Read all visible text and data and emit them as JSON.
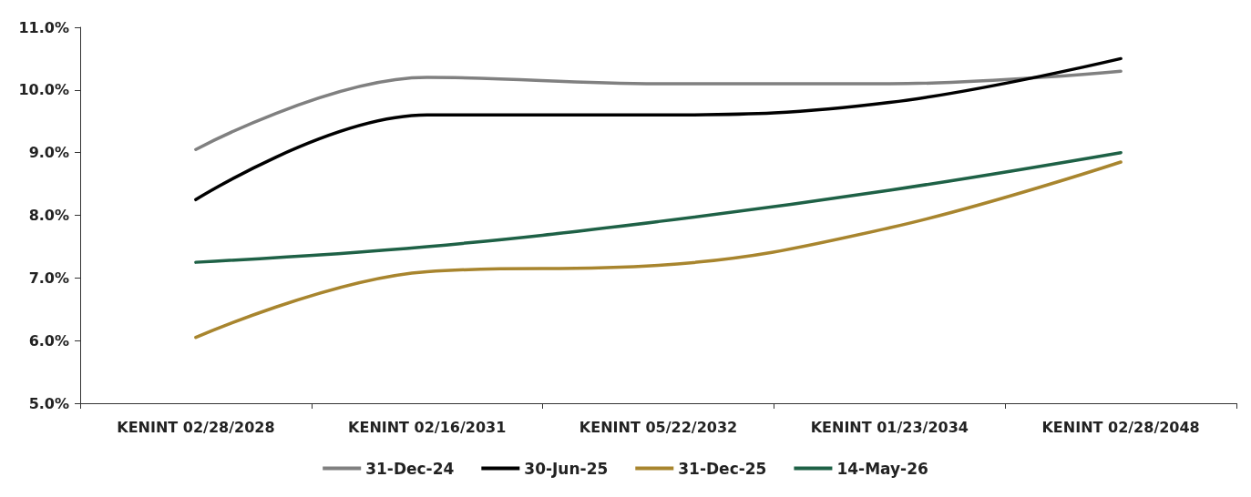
{
  "chart_data": {
    "type": "line",
    "categories": [
      "KENINT 02/28/2028",
      "KENINT 02/16/2031",
      "KENINT 05/22/2032",
      "KENINT 01/23/2034",
      "KENINT 02/28/2048"
    ],
    "series": [
      {
        "name": "31-Dec-24",
        "color": "#808080",
        "values": [
          9.05,
          10.2,
          10.1,
          10.1,
          10.3
        ]
      },
      {
        "name": "30-Jun-25",
        "color": "#000000",
        "values": [
          8.25,
          9.6,
          9.6,
          9.8,
          10.5
        ]
      },
      {
        "name": "31-Dec-25",
        "color": "#a8852e",
        "values": [
          6.05,
          7.1,
          7.2,
          7.8,
          8.85
        ]
      },
      {
        "name": "14-May-26",
        "color": "#1e6146",
        "values": [
          7.25,
          7.5,
          7.9,
          8.4,
          9.0
        ]
      }
    ],
    "ylim": [
      5,
      11
    ],
    "yticks": [
      {
        "value": 5,
        "label": "5.0%"
      },
      {
        "value": 6,
        "label": "6.0%"
      },
      {
        "value": 7,
        "label": "7.0%"
      },
      {
        "value": 8,
        "label": "8.0%"
      },
      {
        "value": 9,
        "label": "9.0%"
      },
      {
        "value": 10,
        "label": "10.0%"
      },
      {
        "value": 11,
        "label": "11.0%"
      }
    ],
    "grid": false,
    "legend": "bottom",
    "marker": "none",
    "line_style": "solid"
  }
}
